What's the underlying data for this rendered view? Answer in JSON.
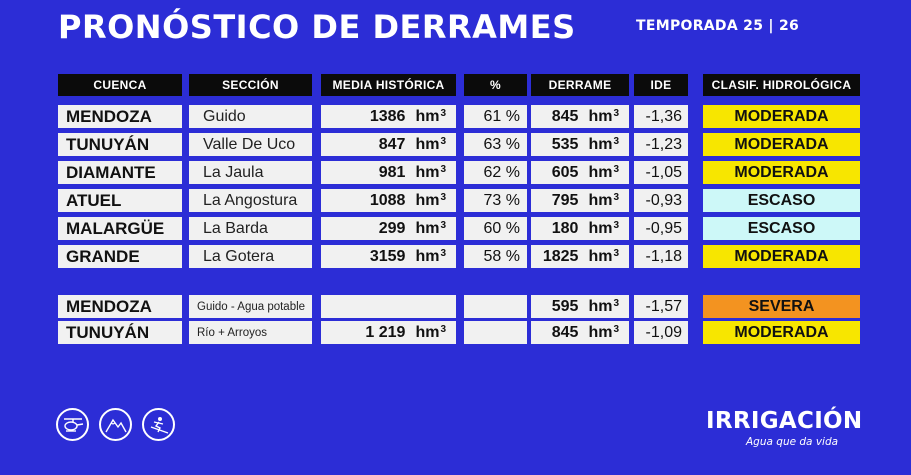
{
  "title": "PRONÓSTICO DE DERRAMES",
  "season": "TEMPORADA 25 | 26",
  "headers": [
    "CUENCA",
    "SECCIÓN",
    "MEDIA HISTÓRICA",
    "%",
    "DERRAME",
    "IDE",
    "CLASIF. HIDROLÓGICA"
  ],
  "unit": "hm",
  "unit_exp": "3",
  "rows": [
    {
      "basin": "MENDOZA",
      "section": "Guido",
      "media": "1386",
      "pct": "61 %",
      "derrame": "845",
      "ide": "-1,36",
      "class": "MODERADA"
    },
    {
      "basin": "TUNUYÁN",
      "section": "Valle De Uco",
      "media": "847",
      "pct": "63 %",
      "derrame": "535",
      "ide": "-1,23",
      "class": "MODERADA"
    },
    {
      "basin": "DIAMANTE",
      "section": "La Jaula",
      "media": "981",
      "pct": "62 %",
      "derrame": "605",
      "ide": "-1,05",
      "class": "MODERADA"
    },
    {
      "basin": "ATUEL",
      "section": "La Angostura",
      "media": "1088",
      "pct": "73 %",
      "derrame": "795",
      "ide": "-0,93",
      "class": "ESCASO"
    },
    {
      "basin": "MALARGÜE",
      "section": "La Barda",
      "media": "299",
      "pct": "60 %",
      "derrame": "180",
      "ide": "-0,95",
      "class": "ESCASO"
    },
    {
      "basin": "GRANDE",
      "section": "La Gotera",
      "media": "3159",
      "pct": "58 %",
      "derrame": "1825",
      "ide": "-1,18",
      "class": "MODERADA"
    }
  ],
  "extra_rows": [
    {
      "basin": "MENDOZA",
      "section": "Guido - Agua potable",
      "media": "",
      "pct": "",
      "derrame": "595",
      "ide": "-1,57",
      "class": "SEVERA"
    },
    {
      "basin": "TUNUYÁN",
      "section": "Río + Arroyos",
      "media": "1 219",
      "pct": "",
      "derrame": "845",
      "ide": "-1,09",
      "class": "MODERADA"
    }
  ],
  "class_colors": {
    "MODERADA": "#f7e600",
    "ESCASO": "#cdf8f8",
    "SEVERA": "#f39320"
  },
  "icons": [
    "helicopter-icon",
    "mountains-icon",
    "skier-icon"
  ],
  "brand": "IRRIGACIÓN",
  "tagline": "Agua que da vida"
}
